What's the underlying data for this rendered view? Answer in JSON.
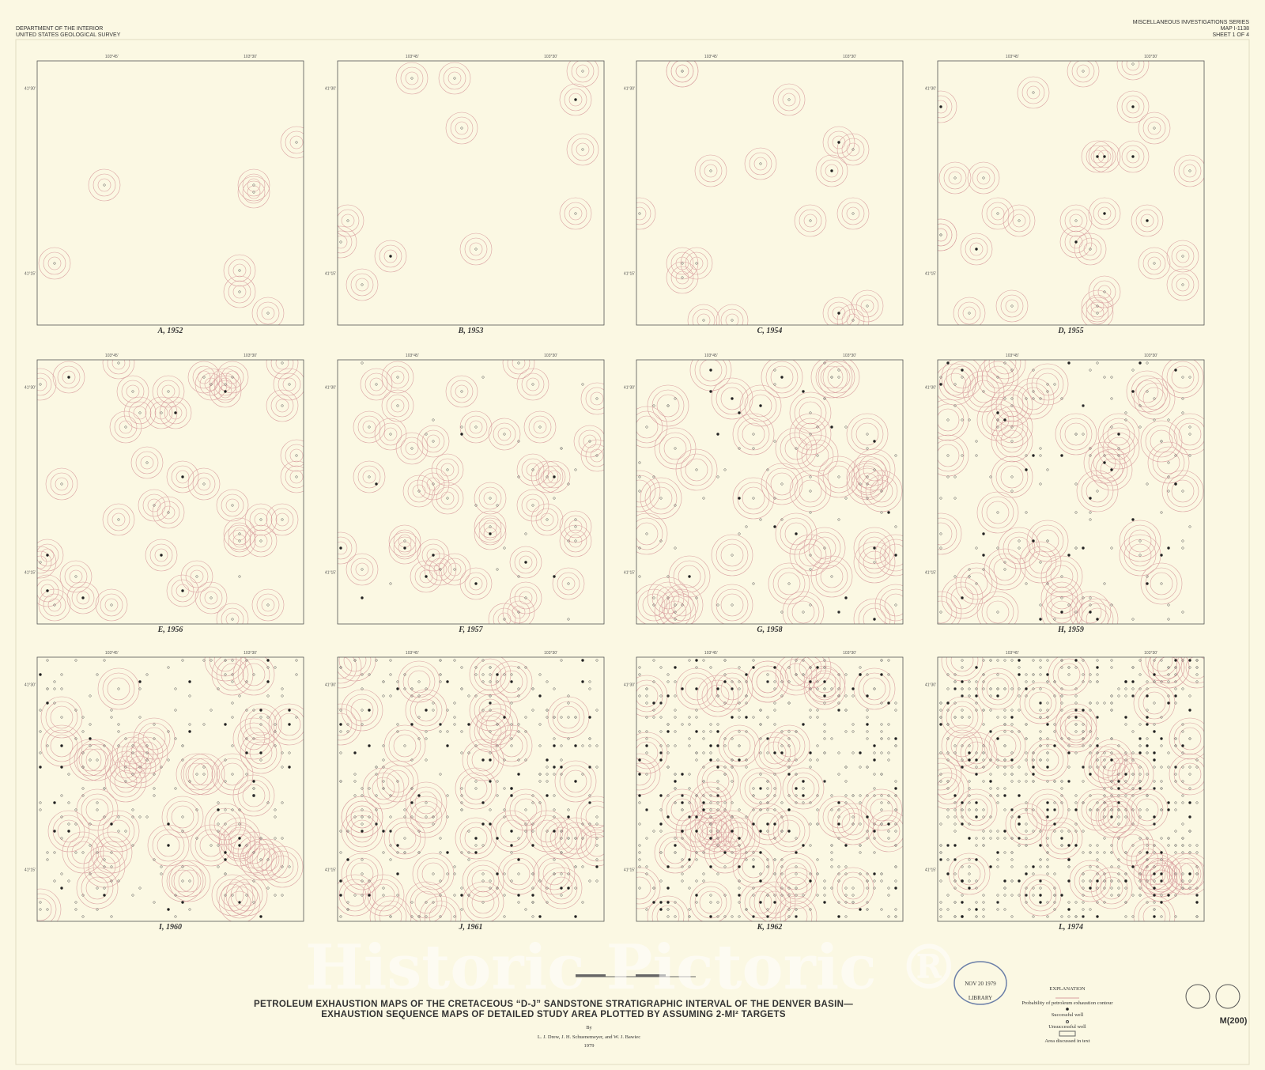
{
  "header": {
    "left": [
      "DEPARTMENT OF THE INTERIOR",
      "UNITED STATES GEOLOGICAL SURVEY"
    ],
    "right": [
      "MISCELLANEOUS INVESTIGATIONS SERIES",
      "MAP I-1138",
      "SHEET 1 OF 4"
    ]
  },
  "coordinates": {
    "lon_west": "103°45'",
    "lon_east": "103°30'",
    "lat_north": "41°30'",
    "lat_south": "41°15'"
  },
  "panels": [
    {
      "label": "A, 1952"
    },
    {
      "label": "B, 1953"
    },
    {
      "label": "C, 1954"
    },
    {
      "label": "D, 1955"
    },
    {
      "label": "E, 1956"
    },
    {
      "label": "F, 1957"
    },
    {
      "label": "G, 1958"
    },
    {
      "label": "H, 1959"
    },
    {
      "label": "I, 1960"
    },
    {
      "label": "J, 1961"
    },
    {
      "label": "K, 1962"
    },
    {
      "label": "L, 1974"
    }
  ],
  "title": {
    "line1": "PETROLEUM EXHAUSTION MAPS OF THE CRETACEOUS “D-J” SANDSTONE STRATIGRAPHIC INTERVAL OF THE DENVER BASIN—",
    "line2": "EXHAUSTION SEQUENCE MAPS OF DETAILED STUDY AREA PLOTTED BY ASSUMING 2-MI² TARGETS"
  },
  "byline": "By",
  "authors": "L. J. Drew, J. H. Schuenemeyer, and W. J. Bawiec",
  "year": "1979",
  "explanation": {
    "heading": "EXPLANATION",
    "items": [
      "Probability of petroleum exhaustion contour",
      "Successful well",
      "Unsuccessful well",
      "Area discussed in text"
    ]
  },
  "stamp": {
    "date": "NOV 20 1979",
    "label": "LIBRARY"
  },
  "sheet_code": "M(200)",
  "watermark": "Historic Pictoric ®"
}
